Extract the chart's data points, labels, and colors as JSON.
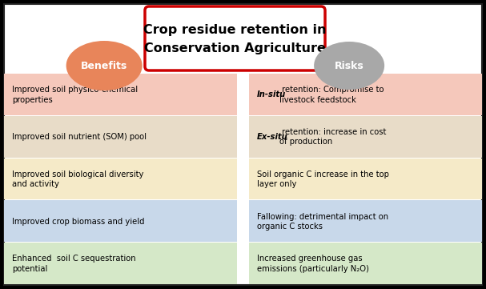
{
  "title_line1": "Crop residue retention in",
  "title_line2": "Conservation Agriculture",
  "benefits_label": "Benefits",
  "risks_label": "Risks",
  "benefits_circle_color": "#E8855A",
  "risks_circle_color": "#A8A8A8",
  "title_box_border_color": "#CC0000",
  "benefits_items": [
    {
      "text": "Improved soil physico-chemical\nproperties",
      "bg": "#F5C8BB"
    },
    {
      "text": "Improved soil nutrient (SOM) pool",
      "bg": "#E8DCC8"
    },
    {
      "text": "Improved soil biological diversity\nand activity",
      "bg": "#F5EAC8"
    },
    {
      "text": "Improved crop biomass and yield",
      "bg": "#C8D8EA"
    },
    {
      "text": "Enhanced  soil C sequestration\npotential",
      "bg": "#D5E8C8"
    }
  ],
  "risks_items": [
    {
      "text_italic": "In-situ",
      "text_normal": " retention: Compromise to\nlivestock feedstock",
      "bg": "#F5C8BB"
    },
    {
      "text_italic": "Ex-situ",
      "text_normal": " retention: increase in cost\nof production",
      "bg": "#E8DCC8"
    },
    {
      "text_italic": "",
      "text_normal": "Soil organic C increase in the top\nlayer only",
      "bg": "#F5EAC8"
    },
    {
      "text_italic": "",
      "text_normal": "Fallowing: detrimental impact on\norganic C stocks",
      "bg": "#C8D8EA"
    },
    {
      "text_italic": "",
      "text_normal": "Increased greenhouse gas\nemissions (particularly N₂O)",
      "bg": "#D5E8C8"
    }
  ],
  "figsize": [
    6.07,
    3.61
  ],
  "dpi": 100
}
